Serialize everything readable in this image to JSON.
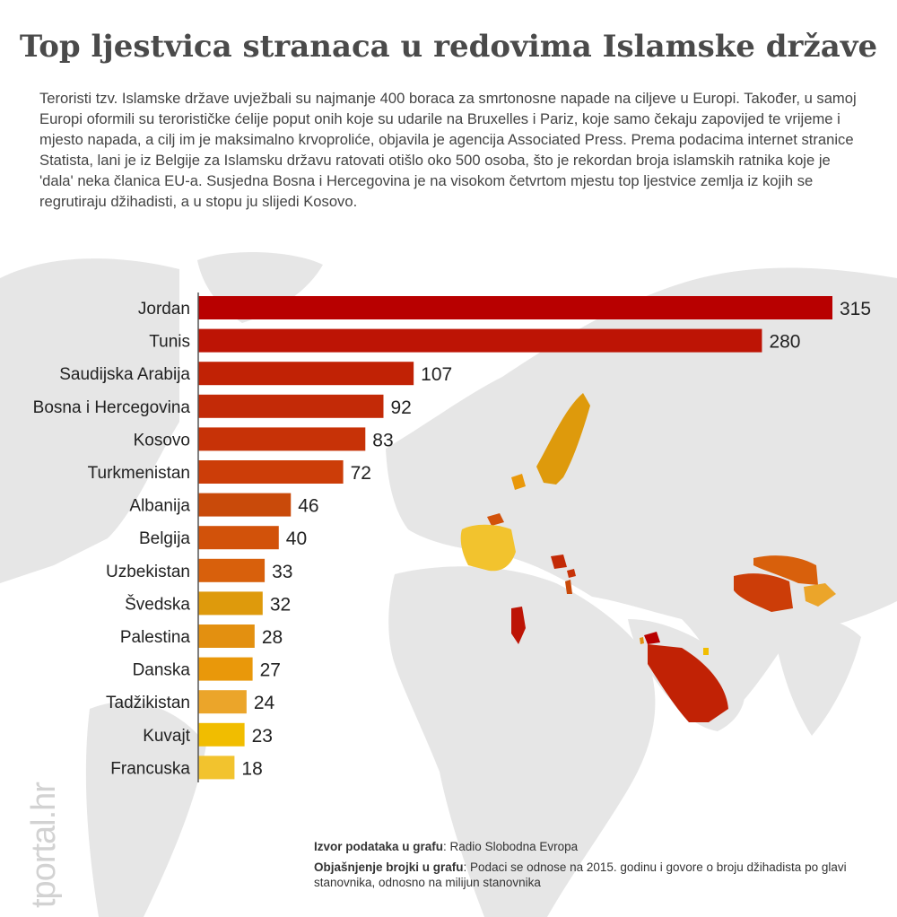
{
  "page": {
    "title": "Top ljestvica stranaca u redovima Islamske države",
    "intro": "Teroristi tzv. Islamske države uvježbali su najmanje 400 boraca za smrtonosne napade na ciljeve u Europi. Također, u samoj Europi oformili su terorističke ćelije poput onih koje su udarile na Bruxelles i Pariz, koje samo čekaju zapovijed te vrijeme i mjesto napada, a cilj im je maksimalno krvoproliće, objavila je agencija Associated Press. Prema podacima internet stranice Statista, lani je iz Belgije za Islamsku državu ratovati otišlo oko 500 osoba,  što je rekordan broja islamskih ratnika koje je 'dala' neka članica EU-a. Susjedna Bosna i Hercegovina je na visokom četvrtom mjestu top ljestvice zemlja iz kojih se regrutiraju džihadisti, a u stopu ju slijedi Kosovo.",
    "source_label": "Izvor podataka u grafu",
    "source_value": "Radio Slobodna Evropa",
    "explanation_label": "Objašnjenje brojki u grafu",
    "explanation_value": "Podaci se odnose na 2015. godinu i govore o broju džihadista po glavi stanovnika, odnosno na milijun stanovnika",
    "brand": "tportal.hr"
  },
  "colors": {
    "background": "#ffffff",
    "land": "#e6e6e6",
    "sea": "#ffffff",
    "title": "#4a4a4a",
    "text": "#333333"
  },
  "chart_data": {
    "type": "bar",
    "orientation": "horizontal",
    "categories": [
      "Jordan",
      "Tunis",
      "Saudijska Arabija",
      "Bosna i Hercegovina",
      "Kosovo",
      "Turkmenistan",
      "Albanija",
      "Belgija",
      "Uzbekistan",
      "Švedska",
      "Palestina",
      "Danska",
      "Tadžikistan",
      "Kuvajt",
      "Francuska"
    ],
    "values": [
      315,
      280,
      107,
      92,
      83,
      72,
      46,
      40,
      33,
      32,
      28,
      27,
      24,
      23,
      18
    ],
    "colors": [
      "#b80000",
      "#bd1405",
      "#c12205",
      "#c32a07",
      "#c73207",
      "#cc3d08",
      "#c94a0a",
      "#d2520a",
      "#d8600c",
      "#de9a0c",
      "#e39010",
      "#e9980a",
      "#eba52a",
      "#f1bd00",
      "#f2c32e"
    ],
    "xlim": [
      0,
      315
    ],
    "value_labels": true,
    "grid": false,
    "legend": "none"
  }
}
